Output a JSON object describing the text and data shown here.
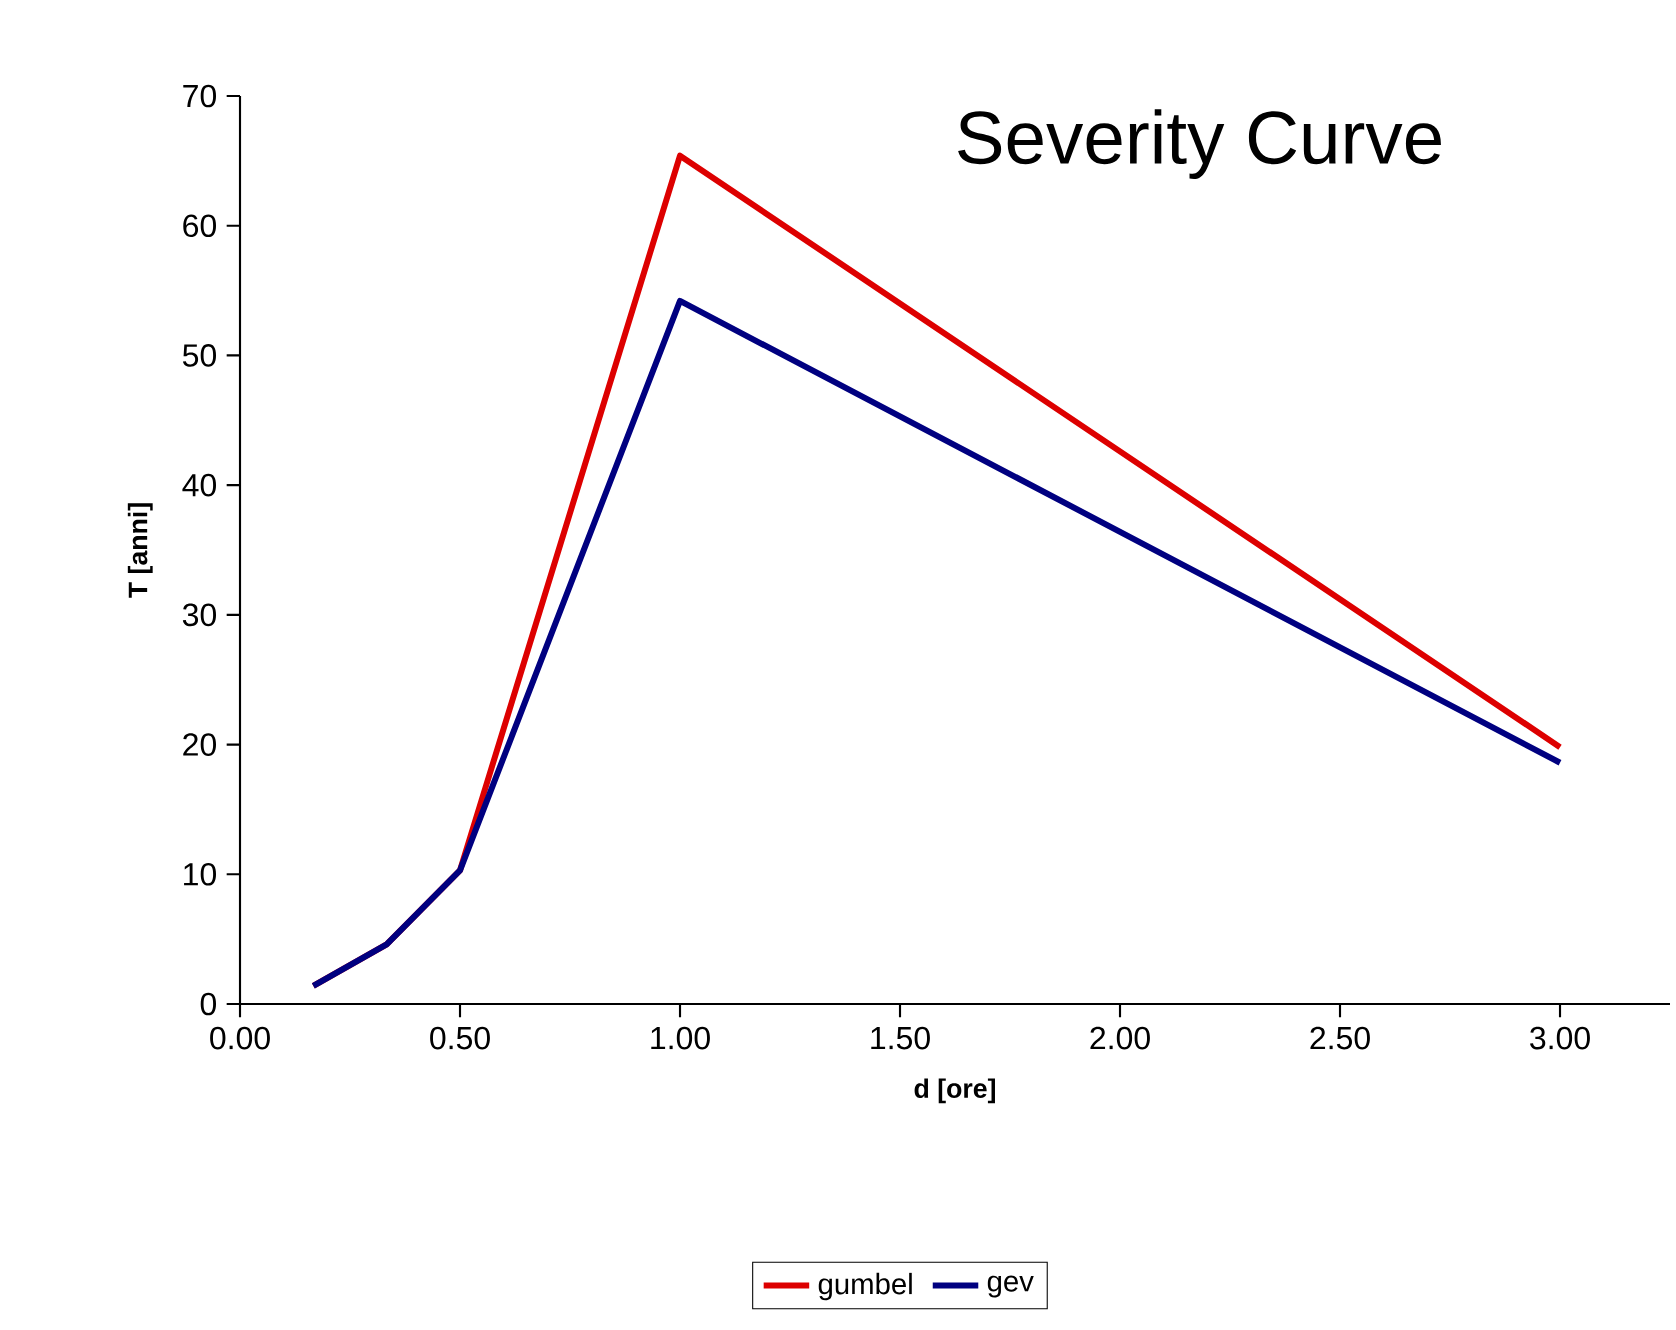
{
  "chart_data": {
    "type": "line",
    "title": "Severity Curve",
    "xlabel": "d [ore]",
    "ylabel": "T [anni]",
    "x": [
      0.1667,
      0.3333,
      0.5,
      1.0,
      3.0
    ],
    "series": [
      {
        "name": "gumbel",
        "color": "#dd0000",
        "values": [
          1.4,
          4.6,
          10.3,
          65.4,
          19.8
        ]
      },
      {
        "name": "gev",
        "color": "#000080",
        "values": [
          1.4,
          4.6,
          10.3,
          54.2,
          18.6
        ]
      }
    ],
    "xlim": [
      0,
      3.25
    ],
    "xticks": [
      {
        "value": 0,
        "label": "0.00"
      },
      {
        "value": 0.5,
        "label": "0.50"
      },
      {
        "value": 1,
        "label": "1.00"
      },
      {
        "value": 1.5,
        "label": "1.50"
      },
      {
        "value": 2,
        "label": "2.00"
      },
      {
        "value": 2.5,
        "label": "2.50"
      },
      {
        "value": 3,
        "label": "3.00"
      }
    ],
    "ylim": [
      0,
      70
    ],
    "yticks": [
      0,
      10,
      20,
      30,
      40,
      50,
      60,
      70
    ],
    "grid": false,
    "legend": "bottom",
    "marker": "none",
    "line_style": "solid"
  }
}
